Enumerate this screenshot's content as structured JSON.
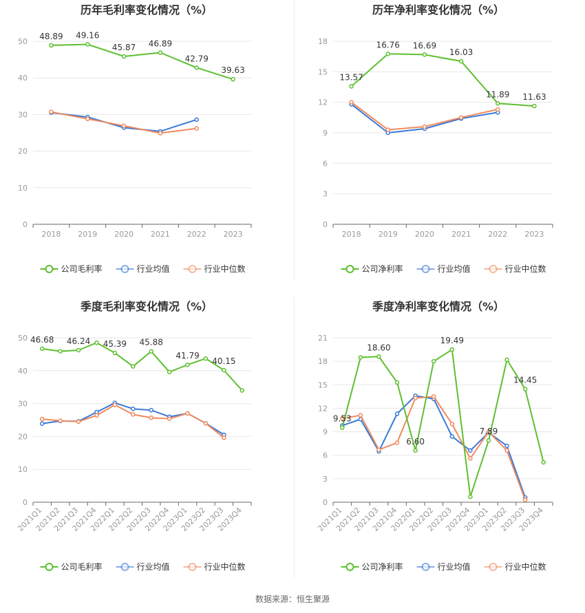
{
  "source": "数据来源：恒生聚源",
  "colors": {
    "company": "#5dbf2f",
    "industry_avg": "#3a78d8",
    "industry_median": "#f08a5d"
  },
  "chart_data": [
    {
      "type": "line",
      "title": "历年毛利率变化情况（%）",
      "categories": [
        "2018",
        "2019",
        "2020",
        "2021",
        "2022",
        "2023"
      ],
      "ylim": [
        0,
        50
      ],
      "yticks": [
        0,
        10,
        20,
        30,
        40,
        50
      ],
      "grid": true,
      "legend": "bottom",
      "series": [
        {
          "name": "公司毛利率",
          "values": [
            48.89,
            49.16,
            45.87,
            46.89,
            42.79,
            39.63
          ],
          "labels": [
            "48.89",
            "49.16",
            "45.87",
            "46.89",
            "42.79",
            "39.63"
          ]
        },
        {
          "name": "行业均值",
          "values": [
            30.5,
            29.3,
            26.4,
            25.4,
            28.6,
            null
          ]
        },
        {
          "name": "行业中位数",
          "values": [
            30.7,
            28.8,
            26.9,
            24.9,
            26.2,
            null
          ]
        }
      ]
    },
    {
      "type": "line",
      "title": "历年净利率变化情况（%）",
      "categories": [
        "2018",
        "2019",
        "2020",
        "2021",
        "2022",
        "2023"
      ],
      "ylim": [
        0,
        18
      ],
      "yticks": [
        0,
        3,
        6,
        9,
        12,
        15,
        18
      ],
      "grid": true,
      "legend": "bottom",
      "series": [
        {
          "name": "公司净利率",
          "values": [
            13.57,
            16.76,
            16.69,
            16.03,
            11.89,
            11.63
          ],
          "labels": [
            "13.57",
            "16.76",
            "16.69",
            "16.03",
            "11.89",
            "11.63"
          ]
        },
        {
          "name": "行业均值",
          "values": [
            11.8,
            9.0,
            9.4,
            10.4,
            11.0,
            null
          ]
        },
        {
          "name": "行业中位数",
          "values": [
            12.0,
            9.3,
            9.6,
            10.5,
            11.3,
            null
          ]
        }
      ]
    },
    {
      "type": "line",
      "title": "季度毛利率变化情况（%）",
      "categories": [
        "2021Q1",
        "2021Q2",
        "2021Q3",
        "2021Q4",
        "2022Q1",
        "2022Q2",
        "2022Q3",
        "2022Q4",
        "2023Q1",
        "2023Q2",
        "2023Q3",
        "2023Q4"
      ],
      "ylim": [
        0,
        50
      ],
      "yticks": [
        0,
        10,
        20,
        30,
        40,
        50
      ],
      "grid": true,
      "legend": "bottom",
      "series": [
        {
          "name": "公司毛利率",
          "values": [
            46.68,
            45.9,
            46.24,
            48.5,
            45.39,
            41.3,
            45.88,
            39.6,
            41.79,
            43.7,
            40.15,
            34.0
          ],
          "labels": [
            "46.68",
            "",
            "46.24",
            "",
            "45.39",
            "",
            "45.88",
            "",
            "41.79",
            "",
            "40.15",
            ""
          ]
        },
        {
          "name": "行业均值",
          "values": [
            23.9,
            24.7,
            24.6,
            27.4,
            30.2,
            28.4,
            28.0,
            26.0,
            27.0,
            24.0,
            20.5,
            null
          ]
        },
        {
          "name": "行业中位数",
          "values": [
            25.3,
            24.8,
            24.5,
            26.4,
            29.6,
            26.7,
            25.7,
            25.4,
            27.0,
            24.0,
            19.6,
            null
          ]
        }
      ]
    },
    {
      "type": "line",
      "title": "季度净利率变化情况（%）",
      "categories": [
        "2021Q1",
        "2021Q2",
        "2021Q3",
        "2021Q4",
        "2022Q1",
        "2022Q2",
        "2022Q3",
        "2022Q4",
        "2023Q1",
        "2023Q2",
        "2023Q3",
        "2023Q4"
      ],
      "ylim": [
        0,
        21
      ],
      "yticks": [
        0,
        3,
        6,
        9,
        12,
        15,
        18,
        21
      ],
      "grid": true,
      "legend": "bottom",
      "series": [
        {
          "name": "公司净利率",
          "values": [
            9.53,
            18.5,
            18.6,
            15.3,
            6.6,
            18.0,
            19.49,
            0.7,
            7.89,
            18.2,
            14.45,
            5.1
          ],
          "labels": [
            "9.53",
            "",
            "18.60",
            "",
            "6.60",
            "",
            "19.49",
            "",
            "7.89",
            "",
            "14.45",
            ""
          ]
        },
        {
          "name": "行业均值",
          "values": [
            9.8,
            10.6,
            6.5,
            11.3,
            13.6,
            13.2,
            8.4,
            6.6,
            8.9,
            7.2,
            0.6,
            null
          ]
        },
        {
          "name": "行业中位数",
          "values": [
            10.7,
            11.1,
            6.7,
            7.6,
            13.3,
            13.5,
            10.0,
            5.6,
            9.0,
            6.6,
            0.3,
            null
          ]
        }
      ]
    }
  ]
}
